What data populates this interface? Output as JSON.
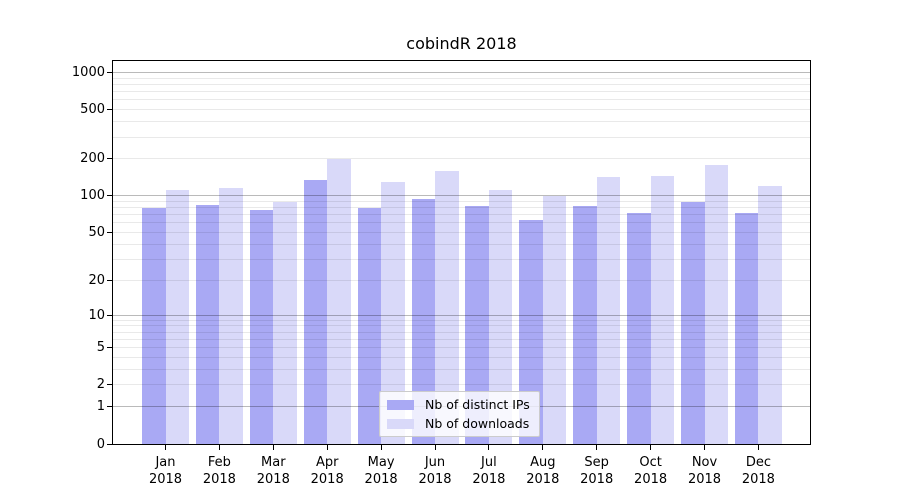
{
  "title": "cobindR 2018",
  "chart_data": {
    "type": "bar",
    "title": "cobindR 2018",
    "categories": [
      "Jan 2018",
      "Feb 2018",
      "Mar 2018",
      "Apr 2018",
      "May 2018",
      "Jun 2018",
      "Jul 2018",
      "Aug 2018",
      "Sep 2018",
      "Oct 2018",
      "Nov 2018",
      "Dec 2018"
    ],
    "series": [
      {
        "name": "Nb of distinct IPs",
        "color": "#a9a9f4",
        "values": [
          80,
          84,
          77,
          134,
          79,
          94,
          83,
          64,
          82,
          73,
          89,
          73
        ]
      },
      {
        "name": "Nb of downloads",
        "color": "#d9d9f9",
        "values": [
          112,
          117,
          89,
          200,
          129,
          159,
          112,
          100,
          142,
          146,
          178,
          121
        ]
      }
    ],
    "y_axis": {
      "scale": "log1p",
      "tick_labels": [
        0,
        1,
        2,
        5,
        10,
        20,
        50,
        100,
        200,
        500,
        1000
      ],
      "range_top": 1240,
      "grid": "major and minor horizontal gridlines, majors darker, drawn over bars"
    },
    "x_axis": {
      "label_format": "month newline year"
    },
    "legend_position": "lower center, inside plot",
    "colors": {
      "bar_distinct_ips": "#a9a9f4",
      "bar_downloads": "#d9d9f9",
      "major_grid": "#bababa",
      "minor_grid": "#e9e9e9",
      "frame": "#000000",
      "background": "#ffffff"
    }
  }
}
